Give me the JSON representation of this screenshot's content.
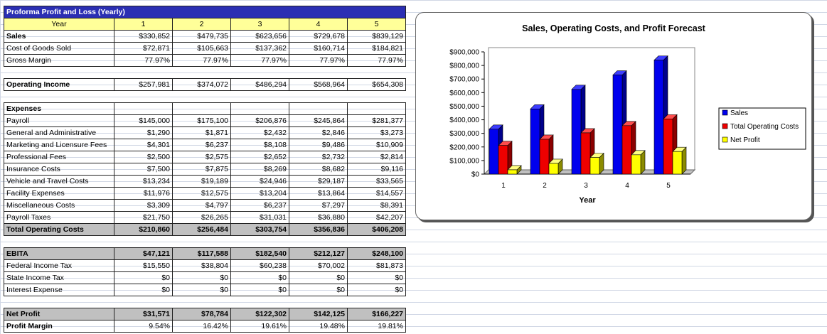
{
  "sheet": {
    "title": "Proforma Profit and Loss (Yearly)",
    "year_label": "Year",
    "years": [
      "1",
      "2",
      "3",
      "4",
      "5"
    ],
    "rows": [
      {
        "label": "Sales",
        "values": [
          "$330,852",
          "$479,735",
          "$623,656",
          "$729,678",
          "$839,129"
        ]
      },
      {
        "label": "Cost of Goods Sold",
        "values": [
          "$72,871",
          "$105,663",
          "$137,362",
          "$160,714",
          "$184,821"
        ]
      },
      {
        "label": "Gross Margin",
        "values": [
          "77.97%",
          "77.97%",
          "77.97%",
          "77.97%",
          "77.97%"
        ]
      }
    ],
    "operating_income": {
      "label": "Operating Income",
      "values": [
        "$257,981",
        "$374,072",
        "$486,294",
        "$568,964",
        "$654,308"
      ]
    },
    "expenses_label": "Expenses",
    "expenses": [
      {
        "label": "Payroll",
        "values": [
          "$145,000",
          "$175,100",
          "$206,876",
          "$245,864",
          "$281,377"
        ]
      },
      {
        "label": "General and Administrative",
        "values": [
          "$1,290",
          "$1,871",
          "$2,432",
          "$2,846",
          "$3,273"
        ]
      },
      {
        "label": "Marketing and Licensure Fees",
        "values": [
          "$4,301",
          "$6,237",
          "$8,108",
          "$9,486",
          "$10,909"
        ]
      },
      {
        "label": "Professional Fees",
        "values": [
          "$2,500",
          "$2,575",
          "$2,652",
          "$2,732",
          "$2,814"
        ]
      },
      {
        "label": "Insurance Costs",
        "values": [
          "$7,500",
          "$7,875",
          "$8,269",
          "$8,682",
          "$9,116"
        ]
      },
      {
        "label": "Vehicle and Travel Costs",
        "values": [
          "$13,234",
          "$19,189",
          "$24,946",
          "$29,187",
          "$33,565"
        ]
      },
      {
        "label": "Facility Expenses",
        "values": [
          "$11,976",
          "$12,575",
          "$13,204",
          "$13,864",
          "$14,557"
        ]
      },
      {
        "label": "Miscellaneous Costs",
        "values": [
          "$3,309",
          "$4,797",
          "$6,237",
          "$7,297",
          "$8,391"
        ]
      },
      {
        "label": "Payroll Taxes",
        "values": [
          "$21,750",
          "$26,265",
          "$31,031",
          "$36,880",
          "$42,207"
        ]
      }
    ],
    "total_operating_costs": {
      "label": "Total Operating Costs",
      "values": [
        "$210,860",
        "$256,484",
        "$303,754",
        "$356,836",
        "$406,208"
      ]
    },
    "ebita": {
      "label": "EBITA",
      "values": [
        "$47,121",
        "$117,588",
        "$182,540",
        "$212,127",
        "$248,100"
      ]
    },
    "taxes": [
      {
        "label": "Federal Income Tax",
        "values": [
          "$15,550",
          "$38,804",
          "$60,238",
          "$70,002",
          "$81,873"
        ]
      },
      {
        "label": "State Income Tax",
        "values": [
          "$0",
          "$0",
          "$0",
          "$0",
          "$0"
        ]
      },
      {
        "label": "Interest Expense",
        "values": [
          "$0",
          "$0",
          "$0",
          "$0",
          "$0"
        ]
      }
    ],
    "net_profit": {
      "label": "Net Profit",
      "values": [
        "$31,571",
        "$78,784",
        "$122,302",
        "$142,125",
        "$166,227"
      ]
    },
    "profit_margin": {
      "label": "Profit Margin",
      "values": [
        "9.54%",
        "16.42%",
        "19.61%",
        "19.48%",
        "19.81%"
      ]
    },
    "colors": {
      "title_bg": "#2b2fb3",
      "year_bg": "#ffff99",
      "total_bg": "#c0c0c0"
    }
  },
  "chart_data": {
    "type": "bar",
    "title": "Sales, Operating Costs, and Profit Forecast",
    "xlabel": "Year",
    "ylabel": "",
    "categories": [
      "1",
      "2",
      "3",
      "4",
      "5"
    ],
    "ylim": [
      0,
      900000
    ],
    "yticks": [
      "$0",
      "$100,000",
      "$200,000",
      "$300,000",
      "$400,000",
      "$500,000",
      "$600,000",
      "$700,000",
      "$800,000",
      "$900,000"
    ],
    "series": [
      {
        "name": "Sales",
        "color": "#0000ee",
        "values": [
          330852,
          479735,
          623656,
          729678,
          839129
        ]
      },
      {
        "name": "Total Operating Costs",
        "color": "#ee0000",
        "values": [
          210860,
          256484,
          303754,
          356836,
          406208
        ]
      },
      {
        "name": "Net Profit",
        "color": "#ffff00",
        "values": [
          31571,
          78784,
          122302,
          142125,
          166227
        ]
      }
    ],
    "legend_position": "right",
    "grid": false
  }
}
